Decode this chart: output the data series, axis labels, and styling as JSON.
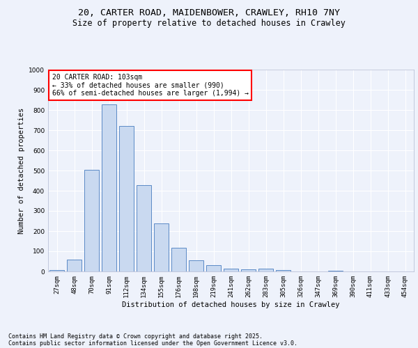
{
  "title_line1": "20, CARTER ROAD, MAIDENBOWER, CRAWLEY, RH10 7NY",
  "title_line2": "Size of property relative to detached houses in Crawley",
  "xlabel": "Distribution of detached houses by size in Crawley",
  "ylabel": "Number of detached properties",
  "categories": [
    "27sqm",
    "48sqm",
    "70sqm",
    "91sqm",
    "112sqm",
    "134sqm",
    "155sqm",
    "176sqm",
    "198sqm",
    "219sqm",
    "241sqm",
    "262sqm",
    "283sqm",
    "305sqm",
    "326sqm",
    "347sqm",
    "369sqm",
    "390sqm",
    "411sqm",
    "433sqm",
    "454sqm"
  ],
  "values": [
    8,
    57,
    505,
    828,
    722,
    428,
    238,
    117,
    55,
    30,
    13,
    10,
    13,
    8,
    0,
    0,
    5,
    0,
    0,
    0,
    0
  ],
  "bar_color": "#c9d9f0",
  "bar_edge_color": "#5a8ac6",
  "annotation_box_text": "20 CARTER ROAD: 103sqm\n← 33% of detached houses are smaller (990)\n66% of semi-detached houses are larger (1,994) →",
  "annotation_box_color": "white",
  "annotation_box_edge_color": "red",
  "annotation_fontsize": 7,
  "ylim": [
    0,
    1000
  ],
  "yticks": [
    0,
    100,
    200,
    300,
    400,
    500,
    600,
    700,
    800,
    900,
    1000
  ],
  "background_color": "#eef2fb",
  "grid_color": "white",
  "footer_line1": "Contains HM Land Registry data © Crown copyright and database right 2025.",
  "footer_line2": "Contains public sector information licensed under the Open Government Licence v3.0.",
  "title_fontsize": 9.5,
  "subtitle_fontsize": 8.5,
  "axis_label_fontsize": 7.5,
  "tick_fontsize": 6.5,
  "footer_fontsize": 6
}
